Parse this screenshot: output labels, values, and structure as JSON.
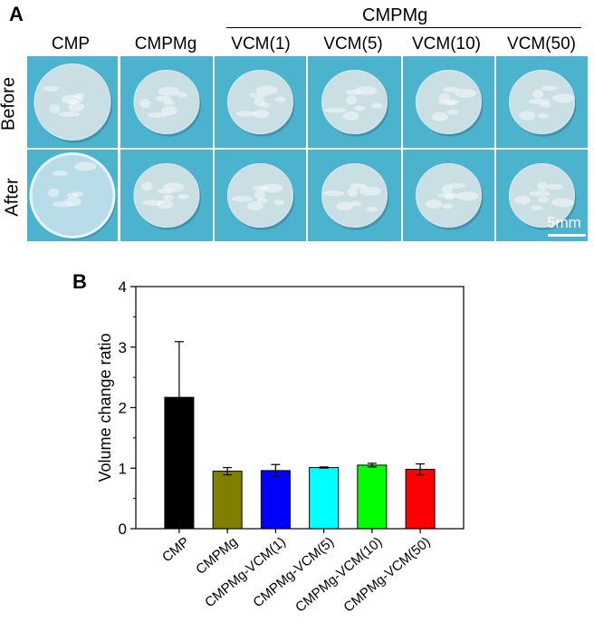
{
  "panel_a": {
    "letter": "A",
    "group_label": "CMPMg",
    "columns": [
      "CMP",
      "CMPMg",
      "VCM(1)",
      "VCM(5)",
      "VCM(10)",
      "VCM(50)"
    ],
    "rows": [
      "Before",
      "After"
    ],
    "scale_bar": "5mm",
    "colors": {
      "background": "#4cb3cf"
    }
  },
  "panel_b": {
    "letter": "B"
  },
  "chart_data": {
    "type": "bar",
    "title": "",
    "xlabel": "",
    "ylabel": "Volume change ratio",
    "ylim": [
      0,
      4
    ],
    "yticks": [
      "0",
      "1",
      "2",
      "3",
      "4"
    ],
    "categories": [
      "CMP",
      "CMPMg",
      "CMPMg-VCM(1)",
      "CMPMg-VCM(5)",
      "CMPMg-VCM(10)",
      "CMPMg-VCM(50)"
    ],
    "values": [
      2.17,
      0.95,
      0.96,
      1.01,
      1.05,
      0.98
    ],
    "errors": [
      0.92,
      0.06,
      0.1,
      0.01,
      0.03,
      0.09
    ],
    "colors": [
      "#000000",
      "#808000",
      "#0000ff",
      "#00ffff",
      "#00ff00",
      "#ff0000"
    ]
  }
}
